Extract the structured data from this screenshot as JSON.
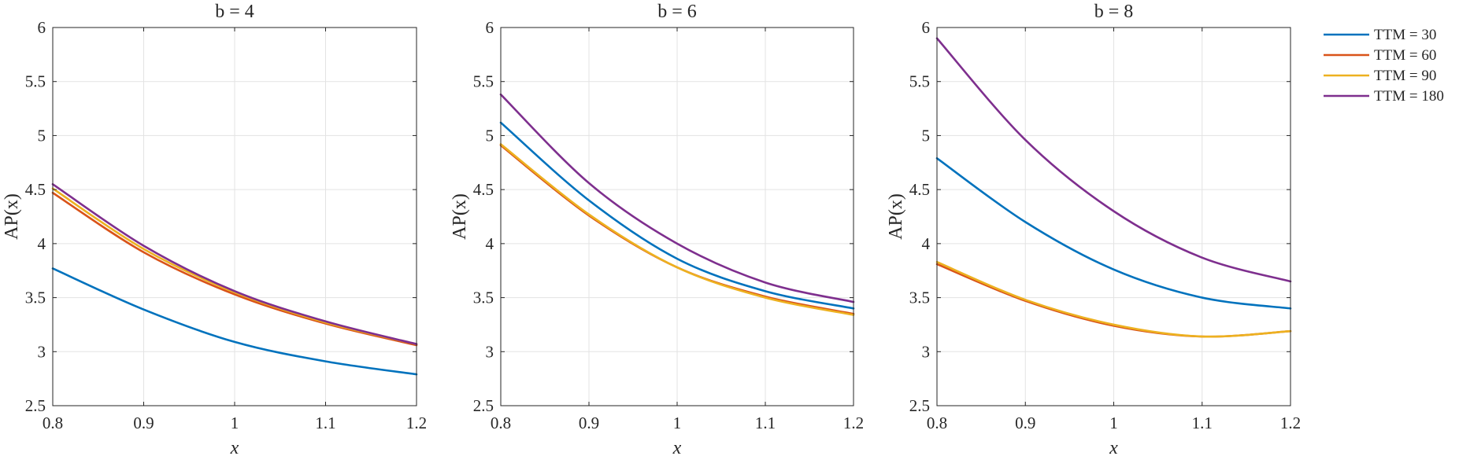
{
  "chart_data": [
    {
      "type": "line",
      "title": "b = 4",
      "xlabel": "x",
      "ylabel": "AP(x)",
      "xlim": [
        0.8,
        1.2
      ],
      "ylim": [
        2.5,
        6
      ],
      "xticks": [
        0.8,
        0.9,
        1,
        1.1,
        1.2
      ],
      "yticks": [
        2.5,
        3,
        3.5,
        4,
        4.5,
        5,
        5.5,
        6
      ],
      "grid": true,
      "series": [
        {
          "name": "TTM = 30",
          "x": [
            0.8,
            0.9,
            1.0,
            1.1,
            1.2
          ],
          "y": [
            3.77,
            3.39,
            3.09,
            2.91,
            2.79
          ]
        },
        {
          "name": "TTM = 60",
          "x": [
            0.8,
            0.9,
            1.0,
            1.1,
            1.2
          ],
          "y": [
            4.47,
            3.92,
            3.53,
            3.26,
            3.06
          ]
        },
        {
          "name": "TTM = 90",
          "x": [
            0.8,
            0.9,
            1.0,
            1.1,
            1.2
          ],
          "y": [
            4.51,
            3.95,
            3.55,
            3.27,
            3.07
          ]
        },
        {
          "name": "TTM = 180",
          "x": [
            0.8,
            0.9,
            1.0,
            1.1,
            1.2
          ],
          "y": [
            4.55,
            3.98,
            3.56,
            3.28,
            3.07
          ]
        }
      ]
    },
    {
      "type": "line",
      "title": "b = 6",
      "xlabel": "x",
      "ylabel": "AP(x)",
      "xlim": [
        0.8,
        1.2
      ],
      "ylim": [
        2.5,
        6
      ],
      "xticks": [
        0.8,
        0.9,
        1,
        1.1,
        1.2
      ],
      "yticks": [
        2.5,
        3,
        3.5,
        4,
        4.5,
        5,
        5.5,
        6
      ],
      "grid": true,
      "series": [
        {
          "name": "TTM = 30",
          "x": [
            0.8,
            0.9,
            1.0,
            1.1,
            1.2
          ],
          "y": [
            5.12,
            4.4,
            3.86,
            3.56,
            3.4
          ]
        },
        {
          "name": "TTM = 60",
          "x": [
            0.8,
            0.9,
            1.0,
            1.1,
            1.2
          ],
          "y": [
            4.91,
            4.26,
            3.78,
            3.51,
            3.35
          ]
        },
        {
          "name": "TTM = 90",
          "x": [
            0.8,
            0.9,
            1.0,
            1.1,
            1.2
          ],
          "y": [
            4.92,
            4.27,
            3.78,
            3.5,
            3.34
          ]
        },
        {
          "name": "TTM = 180",
          "x": [
            0.8,
            0.9,
            1.0,
            1.1,
            1.2
          ],
          "y": [
            5.38,
            4.56,
            4.0,
            3.64,
            3.46
          ]
        }
      ]
    },
    {
      "type": "line",
      "title": "b = 8",
      "xlabel": "x",
      "ylabel": "AP(x)",
      "xlim": [
        0.8,
        1.2
      ],
      "ylim": [
        2.5,
        6
      ],
      "xticks": [
        0.8,
        0.9,
        1,
        1.1,
        1.2
      ],
      "yticks": [
        2.5,
        3,
        3.5,
        4,
        4.5,
        5,
        5.5,
        6
      ],
      "grid": true,
      "series": [
        {
          "name": "TTM = 30",
          "x": [
            0.8,
            0.9,
            1.0,
            1.1,
            1.2
          ],
          "y": [
            4.79,
            4.2,
            3.76,
            3.5,
            3.4
          ]
        },
        {
          "name": "TTM = 60",
          "x": [
            0.8,
            0.9,
            1.0,
            1.1,
            1.2
          ],
          "y": [
            3.81,
            3.47,
            3.24,
            3.14,
            3.19
          ]
        },
        {
          "name": "TTM = 90",
          "x": [
            0.8,
            0.9,
            1.0,
            1.1,
            1.2
          ],
          "y": [
            3.83,
            3.48,
            3.25,
            3.14,
            3.19
          ]
        },
        {
          "name": "TTM = 180",
          "x": [
            0.8,
            0.9,
            1.0,
            1.1,
            1.2
          ],
          "y": [
            5.9,
            4.96,
            4.3,
            3.87,
            3.65
          ]
        }
      ]
    }
  ],
  "legend": {
    "placement": "right",
    "entries": [
      "TTM = 30",
      "TTM = 60",
      "TTM = 90",
      "TTM = 180"
    ]
  },
  "colors": [
    "#0072BD",
    "#D95319",
    "#EDB120",
    "#7E2F8E"
  ]
}
